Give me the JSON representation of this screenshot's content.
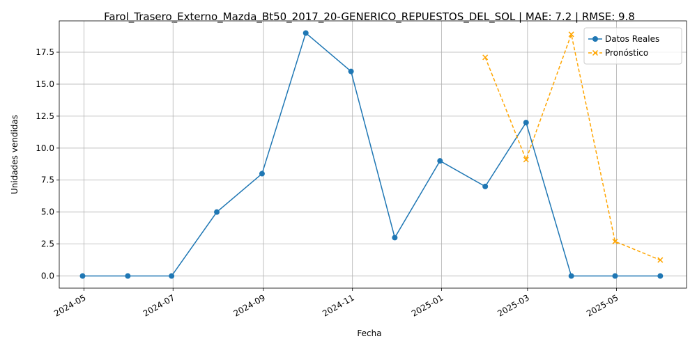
{
  "chart_data": {
    "type": "line",
    "title": "Farol_Trasero_Externo_Mazda_Bt50_2017_20-GENERICO_REPUESTOS_DEL_SOL | MAE: 7.2 | RMSE: 9.8",
    "xlabel": "Fecha",
    "ylabel": "Unidades vendidas",
    "xlim": [
      "2024-04-14",
      "2025-06-18"
    ],
    "ylim": [
      -0.95,
      19.95
    ],
    "grid": true,
    "legend_position": "top-right",
    "x_ticks": [
      "2024-05",
      "2024-07",
      "2024-09",
      "2024-11",
      "2025-01",
      "2025-03",
      "2025-05"
    ],
    "y_ticks": [
      "0.0",
      "2.5",
      "5.0",
      "7.5",
      "10.0",
      "12.5",
      "15.0",
      "17.5"
    ],
    "series": [
      {
        "name": "Datos Reales",
        "color": "#1f77b4",
        "style": "solid",
        "marker": "circle",
        "x": [
          "2024-04-30",
          "2024-05-31",
          "2024-06-30",
          "2024-07-31",
          "2024-08-31",
          "2024-09-30",
          "2024-10-31",
          "2024-11-30",
          "2024-12-31",
          "2025-01-31",
          "2025-02-28",
          "2025-03-31",
          "2025-04-30",
          "2025-05-31"
        ],
        "values": [
          0,
          0,
          0,
          5,
          8,
          19,
          16,
          3,
          9,
          7,
          12,
          0,
          0,
          0
        ]
      },
      {
        "name": "Pronóstico",
        "color": "#ffa500",
        "style": "dashed",
        "marker": "x",
        "x": [
          "2025-01-31",
          "2025-02-28",
          "2025-03-31",
          "2025-04-30",
          "2025-05-31"
        ],
        "values": [
          17.1,
          9.1,
          18.9,
          2.7,
          1.25
        ]
      }
    ]
  }
}
